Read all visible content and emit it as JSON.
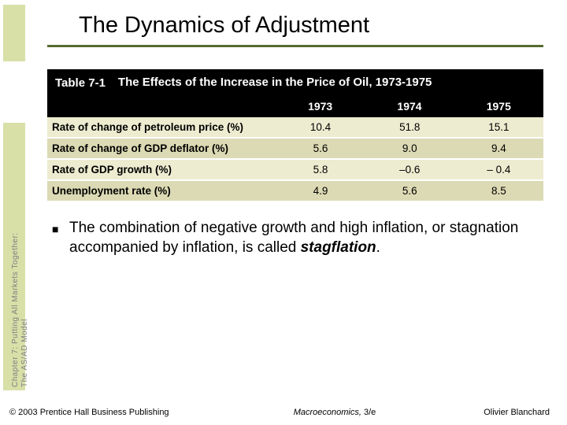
{
  "sidebar": {
    "line1": "Chapter 7: Putting All Markets Together:",
    "line2": "The AS/AD Model",
    "block_color": "#d8e0a8"
  },
  "title": "The Dynamics of Adjustment",
  "rule_color": "#556b2f",
  "table": {
    "label": "Table 7-1",
    "heading": "The Effects of the Increase in the Price of Oil, 1973-1975",
    "years": [
      "1973",
      "1974",
      "1975"
    ],
    "rows": [
      {
        "label": "Rate of change of petroleum price (%)",
        "values": [
          "10.4",
          "51.8",
          "15.1"
        ]
      },
      {
        "label": "Rate of change of GDP deflator (%)",
        "values": [
          "5.6",
          "9.0",
          "9.4"
        ]
      },
      {
        "label": "Rate of GDP growth (%)",
        "values": [
          "5.8",
          "–0.6",
          "– 0.4"
        ]
      },
      {
        "label": "Unemployment rate (%)",
        "values": [
          "4.9",
          "5.6",
          "8.5"
        ]
      }
    ],
    "row_colors": [
      "#edecd0",
      "#dcdab4"
    ],
    "header_bg": "#000000",
    "header_fg": "#ffffff",
    "label_fontsize": 13.5,
    "header_fontsize": 15
  },
  "bullet": {
    "text_pre": "The combination of negative growth and high inflation, or stagnation accompanied by inflation, is called ",
    "emph": "stagflation",
    "text_post": "."
  },
  "footer": {
    "left": "© 2003 Prentice Hall Business Publishing",
    "center_italic": "Macroeconomics, ",
    "center_plain": "3/e",
    "right": "Olivier Blanchard"
  }
}
